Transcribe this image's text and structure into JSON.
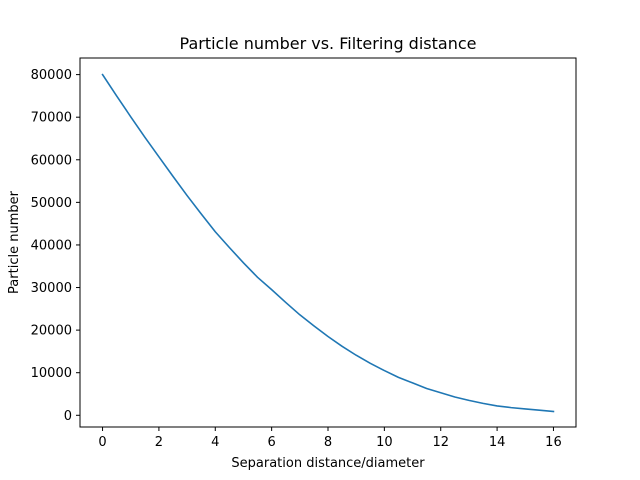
{
  "chart_data": {
    "type": "line",
    "title": "Particle number vs. Filtering distance",
    "xlabel": "Separation distance/diameter",
    "ylabel": "Particle number",
    "xlim": [
      -0.8,
      16.8
    ],
    "ylim": [
      -2750,
      83900
    ],
    "x_ticks": [
      0,
      2,
      4,
      6,
      8,
      10,
      12,
      14,
      16
    ],
    "y_ticks": [
      0,
      10000,
      20000,
      30000,
      40000,
      50000,
      60000,
      70000,
      80000
    ],
    "grid": false,
    "legend": "none",
    "colors": {
      "series": "#1f77b4",
      "axes": "#000000",
      "background": "#ffffff"
    },
    "series": [
      {
        "x": [
          0,
          0.5,
          1,
          1.5,
          2,
          2.5,
          3,
          3.5,
          4,
          4.5,
          5,
          5.5,
          6,
          6.5,
          7,
          7.5,
          8,
          8.5,
          9,
          9.5,
          10,
          10.5,
          11,
          11.5,
          12,
          12.5,
          13,
          13.5,
          14,
          14.5,
          15,
          15.5,
          16
        ],
        "y": [
          80000,
          75000,
          70100,
          65300,
          60700,
          56100,
          51600,
          47300,
          43100,
          39400,
          35800,
          32400,
          29500,
          26500,
          23600,
          21000,
          18500,
          16200,
          14100,
          12200,
          10500,
          8900,
          7600,
          6300,
          5300,
          4300,
          3500,
          2800,
          2200,
          1800,
          1500,
          1200,
          900
        ]
      }
    ]
  }
}
